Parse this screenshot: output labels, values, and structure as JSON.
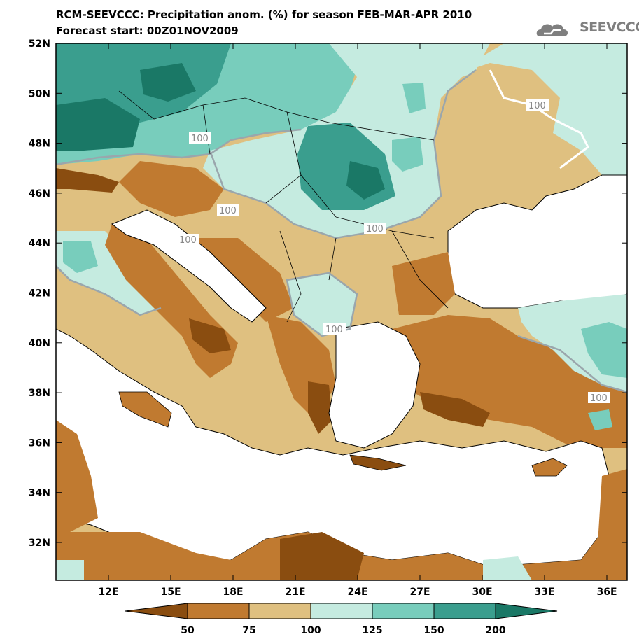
{
  "title": {
    "line1": "RCM-SEEVCCC: Precipitation anom. (%) for season FEB-MAR-APR 2010",
    "line2": "Forecast start: 00Z01NOV2009"
  },
  "logo": {
    "text": "SEEVCCC",
    "icon": "cloud-icon"
  },
  "map": {
    "lat_labels": [
      "52N",
      "50N",
      "48N",
      "46N",
      "44N",
      "42N",
      "40N",
      "38N",
      "36N",
      "34N",
      "32N"
    ],
    "lon_labels": [
      "12E",
      "15E",
      "18E",
      "21E",
      "24E",
      "27E",
      "30E",
      "33E",
      "36E"
    ],
    "contour_labels": [
      "100",
      "100",
      "100",
      "100",
      "100",
      "100",
      "100"
    ]
  },
  "colorbar": {
    "labels": [
      "50",
      "75",
      "100",
      "125",
      "150",
      "200"
    ],
    "colors": [
      "#8a4d10",
      "#c07a30",
      "#dfc080",
      "#c5ebe0",
      "#78cdbc",
      "#3a9e8e",
      "#1a7866"
    ]
  },
  "colors": {
    "very_dry": "#8a4d10",
    "dry": "#c07a30",
    "slightly_dry": "#dfc080",
    "slightly_wet": "#c5ebe0",
    "wet": "#78cdbc",
    "very_wet": "#3a9e8e",
    "extreme_wet": "#1a7866",
    "sea": "#ffffff"
  }
}
